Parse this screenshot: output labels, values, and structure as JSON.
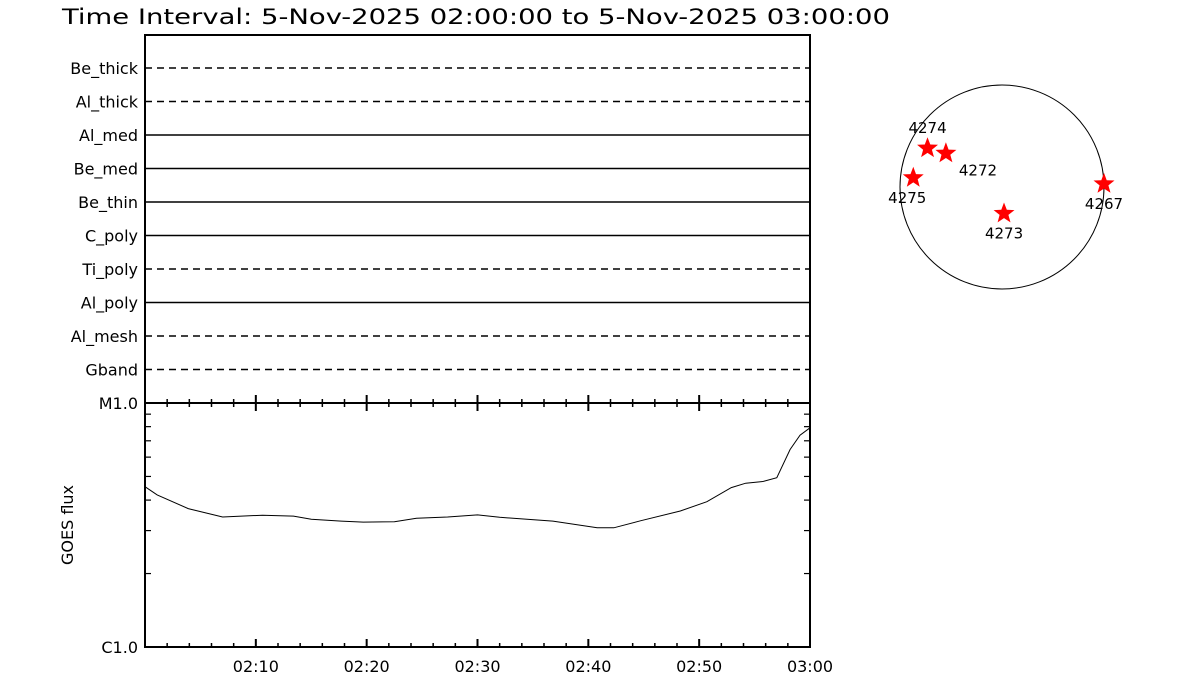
{
  "title": "Time Interval:  5-Nov-2025 02:00:00 to  5-Nov-2025 03:00:00",
  "colors": {
    "axes": "#000000",
    "marker": "#ff0000",
    "background": "#ffffff"
  },
  "chart_data": [
    {
      "type": "table",
      "description_panel": "filters",
      "rows": [
        {
          "label": "Be_thick",
          "line": "dashed"
        },
        {
          "label": "Al_thick",
          "line": "dashed"
        },
        {
          "label": "Al_med",
          "line": "solid"
        },
        {
          "label": "Be_med",
          "line": "solid"
        },
        {
          "label": "Be_thin",
          "line": "solid"
        },
        {
          "label": "C_poly",
          "line": "solid"
        },
        {
          "label": "Ti_poly",
          "line": "dashed"
        },
        {
          "label": "Al_poly",
          "line": "solid"
        },
        {
          "label": "Al_mesh",
          "line": "dashed"
        },
        {
          "label": "Gband",
          "line": "dashed"
        }
      ]
    },
    {
      "type": "line",
      "ylabel": "GOES flux",
      "xlabel": "",
      "yscale": "log",
      "ylim": [
        1e-06,
        1e-05
      ],
      "ytick_labels": [
        "C1.0",
        "M1.0"
      ],
      "xlim_minutes": [
        0,
        60
      ],
      "xtick_labels": [
        "02:10",
        "02:20",
        "02:30",
        "02:40",
        "02:50",
        "03:00"
      ],
      "xtick_minutes": [
        10,
        20,
        30,
        40,
        50,
        60
      ],
      "x_minutes_after_0200": [
        0,
        1.1,
        3.9,
        7.0,
        10.6,
        13.4,
        15.0,
        17.7,
        19.7,
        22.5,
        24.5,
        27.3,
        30.0,
        32.0,
        36.8,
        40.8,
        42.3,
        44.7,
        48.3,
        50.7,
        52.9,
        54.2,
        55.8,
        57.0,
        58.2,
        59.1,
        60.0
      ],
      "y_flux": [
        4.54e-06,
        4.2e-06,
        3.69e-06,
        3.41e-06,
        3.47e-06,
        3.44e-06,
        3.34e-06,
        3.28e-06,
        3.25e-06,
        3.26e-06,
        3.37e-06,
        3.41e-06,
        3.48e-06,
        3.4e-06,
        3.28e-06,
        3.08e-06,
        3.08e-06,
        3.29e-06,
        3.61e-06,
        3.94e-06,
        4.5e-06,
        4.69e-06,
        4.77e-06,
        4.94e-06,
        6.45e-06,
        7.38e-06,
        7.91e-06
      ],
      "grid": false
    },
    {
      "type": "scatter",
      "description_panel": "solar-disk",
      "units": "solar radii (x west, y north)",
      "points": [
        {
          "label": "4274",
          "x": -0.73,
          "y": 0.38
        },
        {
          "label": "4272",
          "x": -0.55,
          "y": 0.33
        },
        {
          "label": "4275",
          "x": -0.87,
          "y": 0.09
        },
        {
          "label": "4273",
          "x": 0.02,
          "y": -0.26
        },
        {
          "label": "4267",
          "x": 1.0,
          "y": 0.03
        }
      ]
    }
  ]
}
